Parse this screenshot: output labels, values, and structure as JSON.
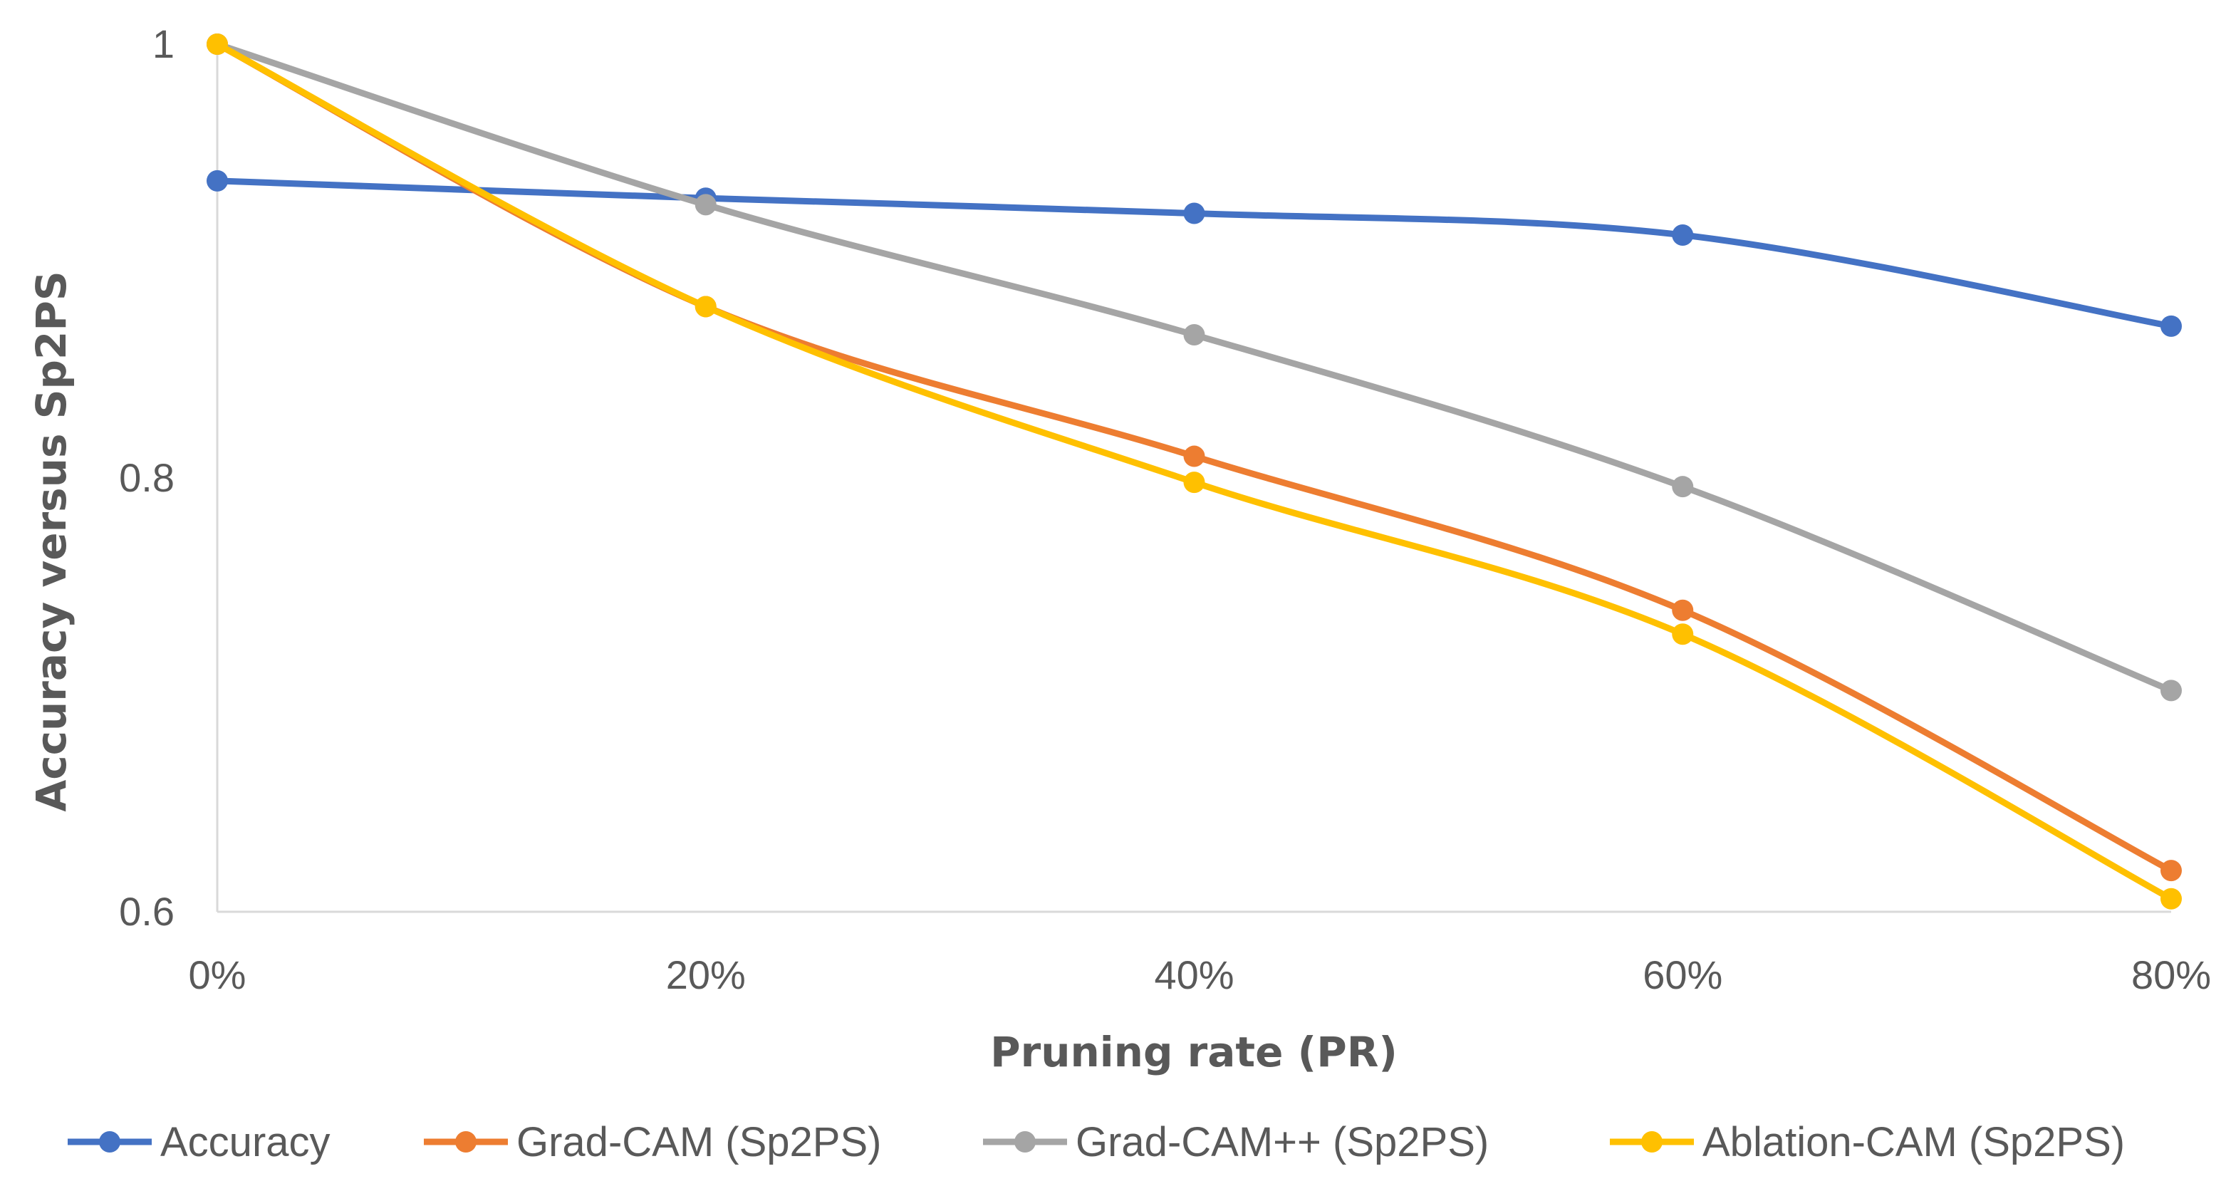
{
  "chart_data": {
    "type": "line",
    "title": "",
    "xlabel": "Pruning rate (PR)",
    "ylabel": "Accuracy versus  Sp2PS",
    "categories": [
      "0%",
      "20%",
      "40%",
      "60%",
      "80%"
    ],
    "ylim": [
      0.6,
      1.0
    ],
    "yticks": [
      0.6,
      0.8,
      1.0
    ],
    "ytick_labels": [
      "0.6",
      "0.8",
      "1"
    ],
    "grid": false,
    "smooth": true,
    "legend_position": "bottom",
    "series": [
      {
        "name": "Accuracy",
        "color": "#4472C4",
        "values": [
          0.937,
          0.929,
          0.922,
          0.912,
          0.87
        ]
      },
      {
        "name": "Grad-CAM (Sp2PS)",
        "color": "#ED7D31",
        "values": [
          1.0,
          0.879,
          0.81,
          0.739,
          0.619
        ]
      },
      {
        "name": "Grad-CAM++  (Sp2PS)",
        "color": "#A5A5A5",
        "values": [
          1.0,
          0.926,
          0.866,
          0.796,
          0.702
        ]
      },
      {
        "name": "Ablation-CAM  (Sp2PS)",
        "color": "#FFC000",
        "values": [
          1.0,
          0.879,
          0.798,
          0.728,
          0.606
        ]
      }
    ]
  }
}
